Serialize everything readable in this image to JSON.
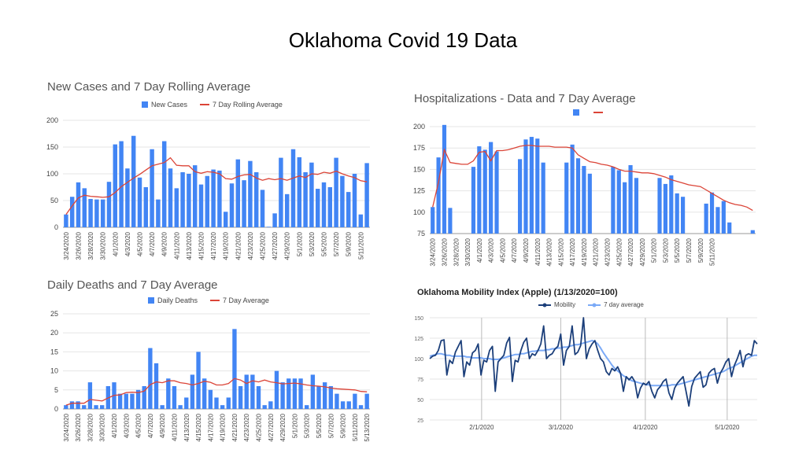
{
  "page": {
    "title": "Oklahoma Covid 19 Data"
  },
  "colors": {
    "bar": "#4285f4",
    "avg": "#db4437",
    "mobility": "#1c3f7a",
    "mobility_avg": "#7baaf7",
    "grid": "#e5e5e5"
  },
  "chart_data": [
    {
      "id": "cases",
      "type": "bar",
      "title": "New Cases and 7 Day Rolling Average",
      "legend": [
        "New Cases",
        "7 Day Rolling Average"
      ],
      "legend_position": "top",
      "ylim": [
        0,
        200
      ],
      "yticks": [
        0,
        50,
        100,
        150,
        200
      ],
      "start_date": "2020-03-24",
      "tick_labels": [
        "3/24/2020",
        "3/26/2020",
        "3/28/2020",
        "3/30/2020",
        "4/1/2020",
        "4/3/2020",
        "4/5/2020",
        "4/7/2020",
        "4/9/2020",
        "4/11/2020",
        "4/13/2020",
        "4/15/2020",
        "4/17/2020",
        "4/19/2020",
        "4/21/2020",
        "4/23/2020",
        "4/25/2020",
        "4/27/2020",
        "4/29/2020",
        "5/1/2020",
        "5/3/2020",
        "5/5/2020",
        "5/7/2020",
        "5/9/2020",
        "5/11/2020"
      ],
      "series": [
        {
          "name": "New Cases",
          "values": [
            24,
            57,
            84,
            73,
            53,
            52,
            52,
            85,
            155,
            161,
            110,
            171,
            93,
            75,
            146,
            52,
            161,
            110,
            73,
            103,
            100,
            116,
            80,
            96,
            108,
            106,
            29,
            82,
            127,
            88,
            124,
            103,
            70,
            1,
            26,
            130,
            62,
            146,
            131,
            103,
            121,
            72,
            84,
            75,
            130,
            96,
            66,
            100,
            24,
            120
          ]
        },
        {
          "name": "7 Day Rolling Average",
          "values": [
            24,
            40,
            55,
            60,
            58,
            57,
            56,
            57,
            65,
            76,
            84,
            92,
            99,
            107,
            115,
            118,
            121,
            130,
            116,
            115,
            115,
            104,
            101,
            104,
            103,
            100,
            91,
            90,
            95,
            98,
            99,
            92,
            88,
            91,
            89,
            91,
            88,
            92,
            96,
            93,
            100,
            99,
            103,
            101,
            105,
            100,
            96,
            93,
            87,
            85
          ]
        }
      ]
    },
    {
      "id": "hosp",
      "type": "bar",
      "title": "Hospitalizations - Data and 7 Day Average",
      "legend_position": "top",
      "ylim": [
        75,
        200
      ],
      "yticks": [
        75,
        100,
        125,
        150,
        175,
        200
      ],
      "start_date": "2020-03-24",
      "tick_labels": [
        "3/24/2020",
        "3/26/2020",
        "3/28/2020",
        "3/30/2020",
        "4/1/2020",
        "4/3/2020",
        "4/5/2020",
        "4/7/2020",
        "4/9/2020",
        "4/11/2020",
        "4/13/2020",
        "4/15/2020",
        "4/17/2020",
        "4/19/2020",
        "4/21/2020",
        "4/23/2020",
        "4/25/2020",
        "4/27/2020",
        "4/29/2020",
        "5/1/2020",
        "5/3/2020",
        "5/5/2020",
        "5/7/2020",
        "5/9/2020",
        "5/11/2020"
      ],
      "series": [
        {
          "name": "",
          "values": [
            106,
            164,
            202,
            105,
            null,
            null,
            null,
            153,
            177,
            173,
            182,
            171,
            null,
            null,
            null,
            162,
            185,
            188,
            186,
            158,
            null,
            null,
            null,
            158,
            179,
            163,
            154,
            145,
            null,
            null,
            null,
            153,
            149,
            135,
            155,
            140,
            null,
            null,
            null,
            140,
            133,
            143,
            122,
            118,
            null,
            null,
            null,
            110,
            123,
            106,
            113,
            88,
            null,
            null,
            null,
            79
          ]
        },
        {
          "name": "",
          "values": [
            106,
            135,
            173,
            158,
            157,
            156,
            156,
            160,
            170,
            171,
            160,
            172,
            172,
            173,
            175,
            177,
            178,
            178,
            177,
            177,
            177,
            176,
            176,
            176,
            175,
            167,
            163,
            159,
            158,
            156,
            155,
            153,
            150,
            148,
            148,
            147,
            146,
            146,
            145,
            143,
            141,
            138,
            136,
            134,
            132,
            131,
            130,
            126,
            122,
            118,
            114,
            111,
            109,
            108,
            106,
            102
          ]
        }
      ]
    },
    {
      "id": "deaths",
      "type": "bar",
      "title": "Daily Deaths and 7 Day Average",
      "legend": [
        "Daily Deaths",
        "7 Day Average"
      ],
      "legend_position": "top",
      "ylim": [
        0,
        25
      ],
      "yticks": [
        0,
        5,
        10,
        15,
        20,
        25
      ],
      "start_date": "2020-03-24",
      "tick_labels": [
        "3/24/2020",
        "3/26/2020",
        "3/28/2020",
        "3/30/2020",
        "4/1/2020",
        "4/3/2020",
        "4/5/2020",
        "4/7/2020",
        "4/9/2020",
        "4/11/2020",
        "4/13/2020",
        "4/15/2020",
        "4/17/2020",
        "4/19/2020",
        "4/21/2020",
        "4/23/2020",
        "4/25/2020",
        "4/27/2020",
        "4/29/2020",
        "5/1/2020",
        "5/3/2020",
        "5/5/2020",
        "5/7/2020",
        "5/9/2020",
        "5/11/2020",
        "5/13/2020"
      ],
      "series": [
        {
          "name": "Daily Deaths",
          "values": [
            1,
            2,
            2,
            1,
            7,
            1,
            1,
            6,
            7,
            4,
            4,
            4,
            5,
            6,
            16,
            12,
            1,
            8,
            6,
            1,
            3,
            9,
            15,
            8,
            5,
            3,
            1,
            3,
            21,
            6,
            9,
            9,
            6,
            1,
            2,
            10,
            7,
            8,
            8,
            8,
            1,
            9,
            6,
            7,
            6,
            4,
            2,
            2,
            4,
            1,
            4
          ]
        },
        {
          "name": "7 Day Average",
          "values": [
            1,
            1.5,
            1.5,
            1.5,
            2.5,
            2.3,
            2.1,
            2.9,
            3.6,
            3.7,
            4.3,
            4.4,
            4.3,
            4.7,
            6.4,
            7.1,
            6.9,
            7.4,
            7.4,
            6.9,
            6.7,
            6.3,
            6.7,
            7.3,
            7,
            6.3,
            6.3,
            6.7,
            8,
            7.6,
            6.7,
            7.4,
            7.1,
            7.6,
            7.1,
            6.9,
            6.6,
            6.7,
            6.8,
            6.6,
            6.3,
            6.1,
            6,
            5.8,
            5.5,
            5.3,
            5.2,
            5.1,
            5,
            4.6,
            4.5
          ]
        }
      ]
    },
    {
      "id": "mobility",
      "type": "line",
      "title": "Oklahoma Mobility Index (Apple) (1/13/2020=100)",
      "legend": [
        "Mobility",
        "7 day average"
      ],
      "legend_position": "top",
      "ylim": [
        25,
        150
      ],
      "yticks": [
        25,
        50,
        75,
        100,
        125,
        150
      ],
      "x_ticks": [
        "2/1/2020",
        "3/1/2020",
        "4/1/2020",
        "5/1/2020"
      ],
      "x_range": [
        "2020-01-13",
        "2020-05-12"
      ],
      "x_tick_dates": [
        "2020-02-01",
        "2020-03-01",
        "2020-04-01",
        "2020-05-01"
      ],
      "series": [
        {
          "name": "Mobility",
          "values": [
            100,
            103,
            104,
            110,
            122,
            123,
            80,
            98,
            94,
            108,
            115,
            122,
            78,
            96,
            92,
            107,
            110,
            118,
            80,
            98,
            96,
            110,
            115,
            60,
            96,
            100,
            104,
            119,
            126,
            72,
            98,
            96,
            110,
            120,
            125,
            100,
            106,
            104,
            110,
            118,
            140,
            100,
            104,
            106,
            112,
            115,
            130,
            92,
            110,
            115,
            140,
            105,
            108,
            116,
            150,
            100,
            112,
            118,
            122,
            110,
            100,
            96,
            84,
            80,
            88,
            85,
            90,
            82,
            60,
            78,
            74,
            78,
            72,
            52,
            64,
            70,
            68,
            72,
            60,
            52,
            62,
            66,
            72,
            75,
            58,
            50,
            64,
            70,
            74,
            78,
            60,
            42,
            66,
            76,
            80,
            84,
            65,
            68,
            82,
            86,
            88,
            70,
            82,
            88,
            96,
            100,
            78,
            92,
            100,
            110,
            90,
            104,
            106,
            104,
            122,
            118
          ]
        },
        {
          "name": "7 day average",
          "values": [
            103,
            104,
            105,
            106,
            106,
            105,
            104,
            104,
            103,
            103,
            103,
            103,
            103,
            102,
            102,
            101,
            101,
            101,
            101,
            100,
            100,
            100,
            99,
            99,
            99,
            100,
            101,
            102,
            103,
            104,
            105,
            105,
            106,
            106,
            107,
            108,
            109,
            109,
            110,
            110,
            110,
            111,
            111,
            112,
            112,
            113,
            113,
            114,
            114,
            115,
            116,
            117,
            117,
            118,
            119,
            120,
            121,
            122,
            121,
            118,
            113,
            107,
            102,
            97,
            92,
            88,
            85,
            82,
            79,
            77,
            75,
            73,
            72,
            71,
            70,
            69,
            68,
            68,
            67,
            67,
            67,
            67,
            67,
            67,
            67,
            68,
            68,
            68,
            69,
            70,
            71,
            72,
            73,
            74,
            75,
            76,
            77,
            78,
            79,
            80,
            81,
            82,
            83,
            84,
            86,
            88,
            89,
            91,
            93,
            95,
            97,
            99,
            101,
            103,
            104,
            104
          ]
        }
      ]
    }
  ]
}
